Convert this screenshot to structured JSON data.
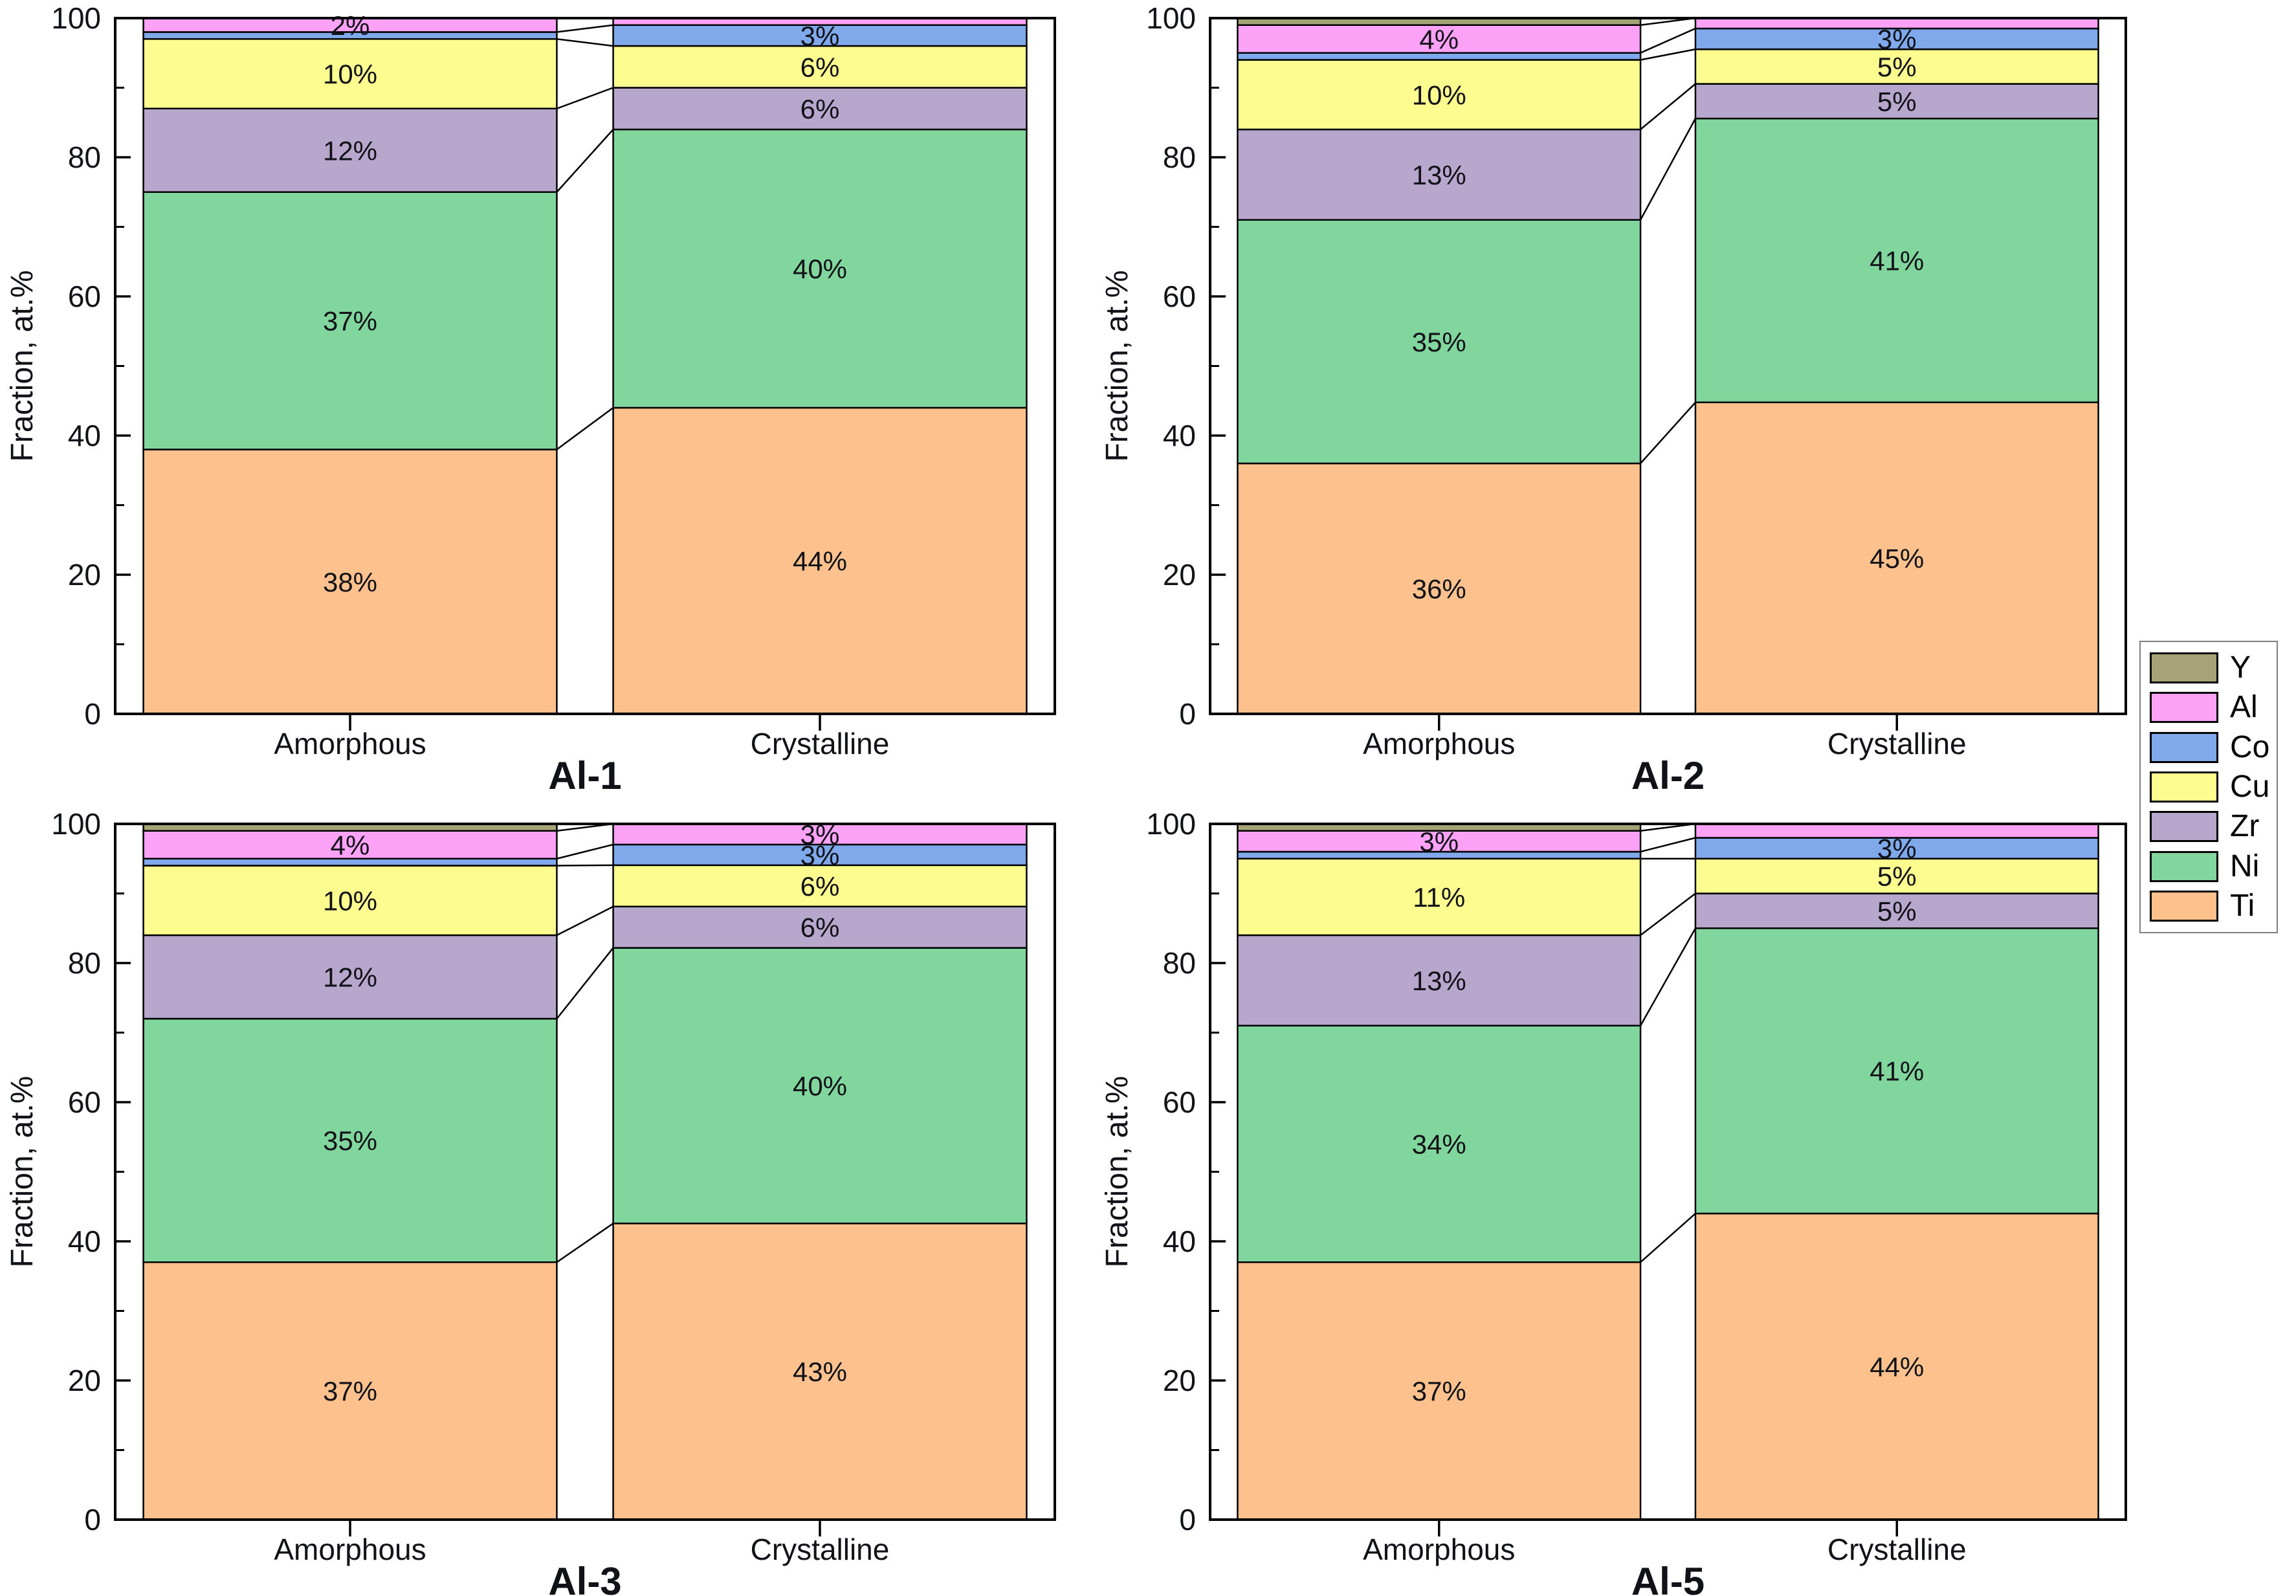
{
  "figure": {
    "background": "#ffffff",
    "ylabel": "Fraction, at.%",
    "yticks": [
      0,
      20,
      40,
      60,
      80,
      100
    ],
    "yminorticks": [
      10,
      30,
      50,
      70,
      90
    ],
    "ylim": [
      0,
      100
    ],
    "categories": [
      "Amorphous",
      "Crystalline"
    ],
    "axis_color": "#000000",
    "label_color": "#111118",
    "element_colors": {
      "Y": "#a6a376",
      "Al": "#fca2f6",
      "Co": "#7fa9ea",
      "Cu": "#fdfc8e",
      "Zr": "#b8a7cd",
      "Ni": "#81d69e",
      "Ti": "#fcc18d"
    },
    "legend": {
      "items": [
        "Y",
        "Al",
        "Co",
        "Cu",
        "Zr",
        "Ni",
        "Ti"
      ]
    }
  },
  "chart_data": [
    {
      "type": "bar",
      "stacked": true,
      "title": "Al-1",
      "xlabel": "",
      "ylabel": "Fraction, at.%",
      "ylim": [
        0,
        100
      ],
      "grid": false,
      "categories": [
        "Amorphous",
        "Crystalline"
      ],
      "series": [
        {
          "name": "Ti",
          "values": [
            38,
            44
          ],
          "labels": [
            "38%",
            "44%"
          ]
        },
        {
          "name": "Ni",
          "values": [
            37,
            40
          ],
          "labels": [
            "37%",
            "40%"
          ]
        },
        {
          "name": "Zr",
          "values": [
            12,
            6
          ],
          "labels": [
            "12%",
            "6%"
          ]
        },
        {
          "name": "Cu",
          "values": [
            10,
            6
          ],
          "labels": [
            "10%",
            "6%"
          ]
        },
        {
          "name": "Co",
          "values": [
            1,
            3
          ],
          "labels": [
            "",
            "3%"
          ]
        },
        {
          "name": "Al",
          "values": [
            2,
            1
          ],
          "labels": [
            "2%",
            ""
          ]
        },
        {
          "name": "Y",
          "values": [
            0,
            0
          ],
          "labels": [
            "",
            ""
          ]
        }
      ]
    },
    {
      "type": "bar",
      "stacked": true,
      "title": "Al-2",
      "xlabel": "",
      "ylabel": "Fraction, at.%",
      "ylim": [
        0,
        100
      ],
      "grid": false,
      "categories": [
        "Amorphous",
        "Crystalline"
      ],
      "series": [
        {
          "name": "Ti",
          "values": [
            36,
            45
          ],
          "labels": [
            "36%",
            "45%"
          ]
        },
        {
          "name": "Ni",
          "values": [
            35,
            41
          ],
          "labels": [
            "35%",
            "41%"
          ]
        },
        {
          "name": "Zr",
          "values": [
            13,
            5
          ],
          "labels": [
            "13%",
            "5%"
          ]
        },
        {
          "name": "Cu",
          "values": [
            10,
            5
          ],
          "labels": [
            "10%",
            "5%"
          ]
        },
        {
          "name": "Co",
          "values": [
            1,
            3
          ],
          "labels": [
            "",
            "3%"
          ]
        },
        {
          "name": "Al",
          "values": [
            4,
            1.5
          ],
          "labels": [
            "4%",
            ""
          ]
        },
        {
          "name": "Y",
          "values": [
            1,
            0
          ],
          "labels": [
            "",
            ""
          ]
        }
      ]
    },
    {
      "type": "bar",
      "stacked": true,
      "title": "Al-3",
      "xlabel": "",
      "ylabel": "Fraction, at.%",
      "ylim": [
        0,
        100
      ],
      "grid": false,
      "categories": [
        "Amorphous",
        "Crystalline"
      ],
      "series": [
        {
          "name": "Ti",
          "values": [
            37,
            43
          ],
          "labels": [
            "37%",
            "43%"
          ]
        },
        {
          "name": "Ni",
          "values": [
            35,
            40
          ],
          "labels": [
            "35%",
            "40%"
          ]
        },
        {
          "name": "Zr",
          "values": [
            12,
            6
          ],
          "labels": [
            "12%",
            "6%"
          ]
        },
        {
          "name": "Cu",
          "values": [
            10,
            6
          ],
          "labels": [
            "10%",
            "6%"
          ]
        },
        {
          "name": "Co",
          "values": [
            1,
            3
          ],
          "labels": [
            "",
            "3%"
          ]
        },
        {
          "name": "Al",
          "values": [
            4,
            3
          ],
          "labels": [
            "4%",
            "3%"
          ]
        },
        {
          "name": "Y",
          "values": [
            1,
            0
          ],
          "labels": [
            "",
            ""
          ]
        }
      ]
    },
    {
      "type": "bar",
      "stacked": true,
      "title": "Al-5",
      "xlabel": "",
      "ylabel": "Fraction, at.%",
      "ylim": [
        0,
        100
      ],
      "grid": false,
      "categories": [
        "Amorphous",
        "Crystalline"
      ],
      "series": [
        {
          "name": "Ti",
          "values": [
            37,
            44
          ],
          "labels": [
            "37%",
            "44%"
          ]
        },
        {
          "name": "Ni",
          "values": [
            34,
            41
          ],
          "labels": [
            "34%",
            "41%"
          ]
        },
        {
          "name": "Zr",
          "values": [
            13,
            5
          ],
          "labels": [
            "13%",
            "5%"
          ]
        },
        {
          "name": "Cu",
          "values": [
            11,
            5
          ],
          "labels": [
            "11%",
            "5%"
          ]
        },
        {
          "name": "Co",
          "values": [
            1,
            3
          ],
          "labels": [
            "",
            "3%"
          ]
        },
        {
          "name": "Al",
          "values": [
            3,
            2
          ],
          "labels": [
            "3%",
            ""
          ]
        },
        {
          "name": "Y",
          "values": [
            1,
            0
          ],
          "labels": [
            "",
            ""
          ]
        }
      ]
    }
  ]
}
